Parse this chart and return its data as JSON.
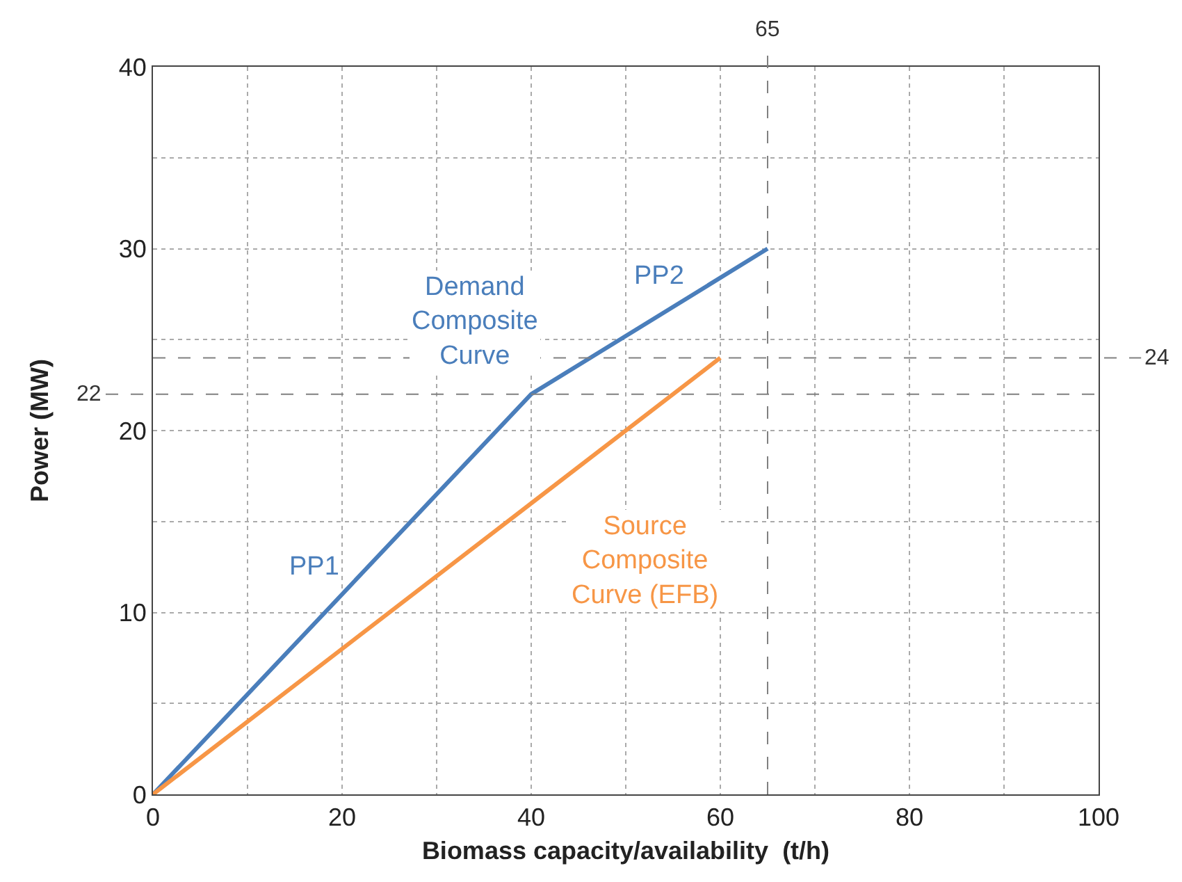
{
  "chart_data": {
    "type": "line",
    "xlabel": "Biomass capacity/availability  (t/h)",
    "ylabel": "Power (MW)",
    "series": [
      {
        "color": "#4a7ebb",
        "x": [
          0,
          40,
          65
        ],
        "values": [
          0,
          22,
          30
        ]
      },
      {
        "color": "#f79646",
        "x": [
          0,
          60
        ],
        "values": [
          0,
          24
        ]
      }
    ],
    "xlim": [
      0,
      100
    ],
    "ylim": [
      0,
      40
    ],
    "xticks": [
      0,
      {
        "value": 10,
        "label": null
      },
      20,
      {
        "value": 30,
        "label": null
      },
      40,
      {
        "value": 50,
        "label": null
      },
      60,
      {
        "value": 70,
        "label": null
      },
      80,
      {
        "value": 90,
        "label": null
      },
      100
    ],
    "yticks": [
      0,
      {
        "value": 5,
        "label": null
      },
      10,
      {
        "value": 15,
        "label": null
      },
      20,
      {
        "value": 25,
        "label": null
      },
      30,
      {
        "value": 35,
        "label": null
      },
      40
    ],
    "grid": true,
    "marker": "none",
    "line_style": "solid",
    "ref_lines": [
      {
        "axis": "x",
        "value": 65,
        "label": "65"
      },
      {
        "axis": "y",
        "value": 24,
        "label": "24"
      },
      {
        "axis": "y",
        "value": 22,
        "label": "22"
      }
    ],
    "annotations": [
      "Demand\nComposite\nCurve",
      {
        "text": "PP1",
        "x": 17,
        "y": 12.5
      },
      {
        "text": "PP2",
        "x": 53.5,
        "y": 28.5
      },
      "Source\nComposite\nCurve (EFB)"
    ]
  }
}
